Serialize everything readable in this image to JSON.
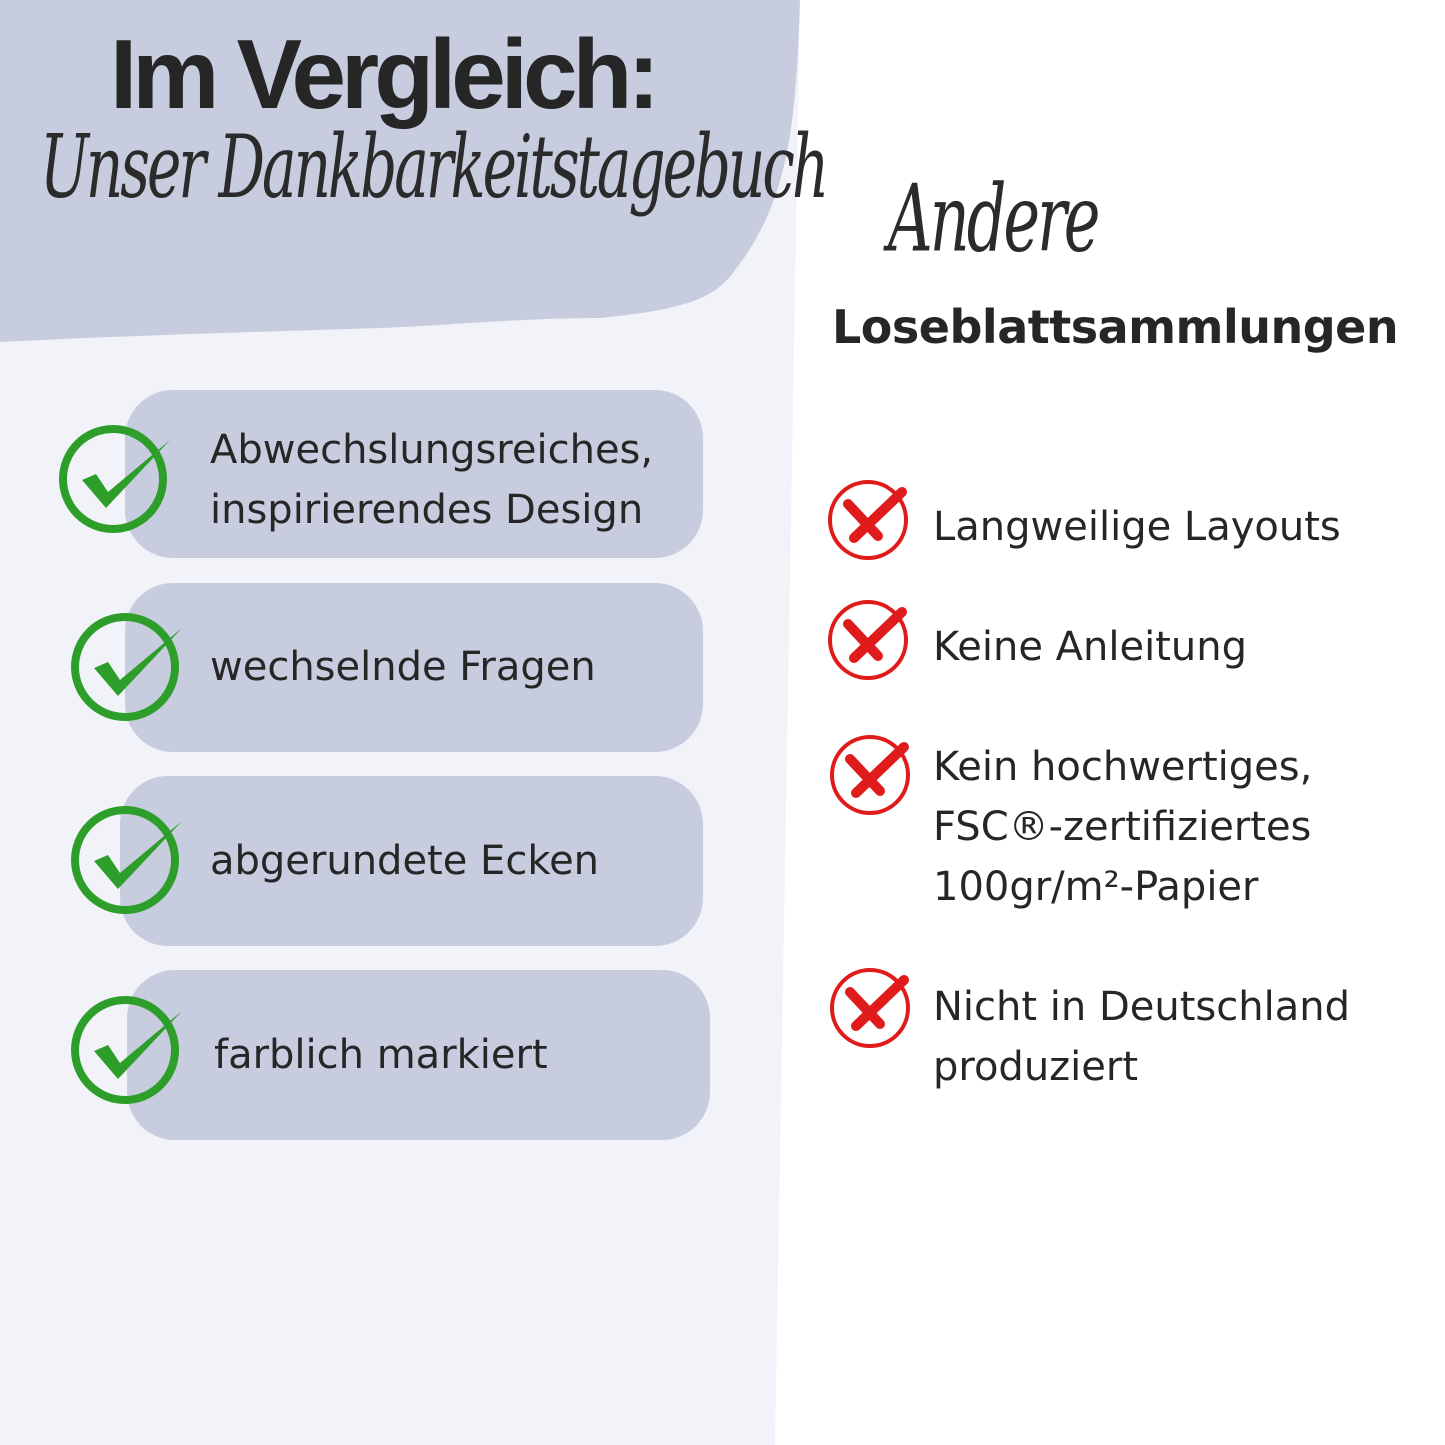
{
  "header": {
    "title": "Im Vergleich:",
    "subtitle_script": "Unser Dankbarkeitstagebuch"
  },
  "pros": {
    "icon": "check-circle-icon",
    "color": "#2e9e2a",
    "items": [
      {
        "lines": [
          "Abwechslungsreiches,",
          "inspirierendes Design"
        ]
      },
      {
        "lines": [
          "wechselnde Fragen"
        ]
      },
      {
        "lines": [
          "abgerundete Ecken"
        ]
      },
      {
        "lines": [
          "farblich markiert"
        ]
      }
    ]
  },
  "others": {
    "title_script": "Andere",
    "title": "Loseblattsammlungen",
    "icon": "x-circle-icon",
    "color": "#e01b1b",
    "items": [
      {
        "lines": [
          "Langweilige Layouts"
        ]
      },
      {
        "lines": [
          "Keine Anleitung"
        ]
      },
      {
        "lines": [
          "Kein hochwertiges,",
          "FSC®-zertifiziertes",
          "100gr/m²-Papier"
        ]
      },
      {
        "lines": [
          "Nicht in Deutschland",
          "produziert"
        ]
      }
    ]
  },
  "colors": {
    "panel": "#f1f3f8",
    "accent_blob": "#c7cddf",
    "text": "#262626"
  }
}
